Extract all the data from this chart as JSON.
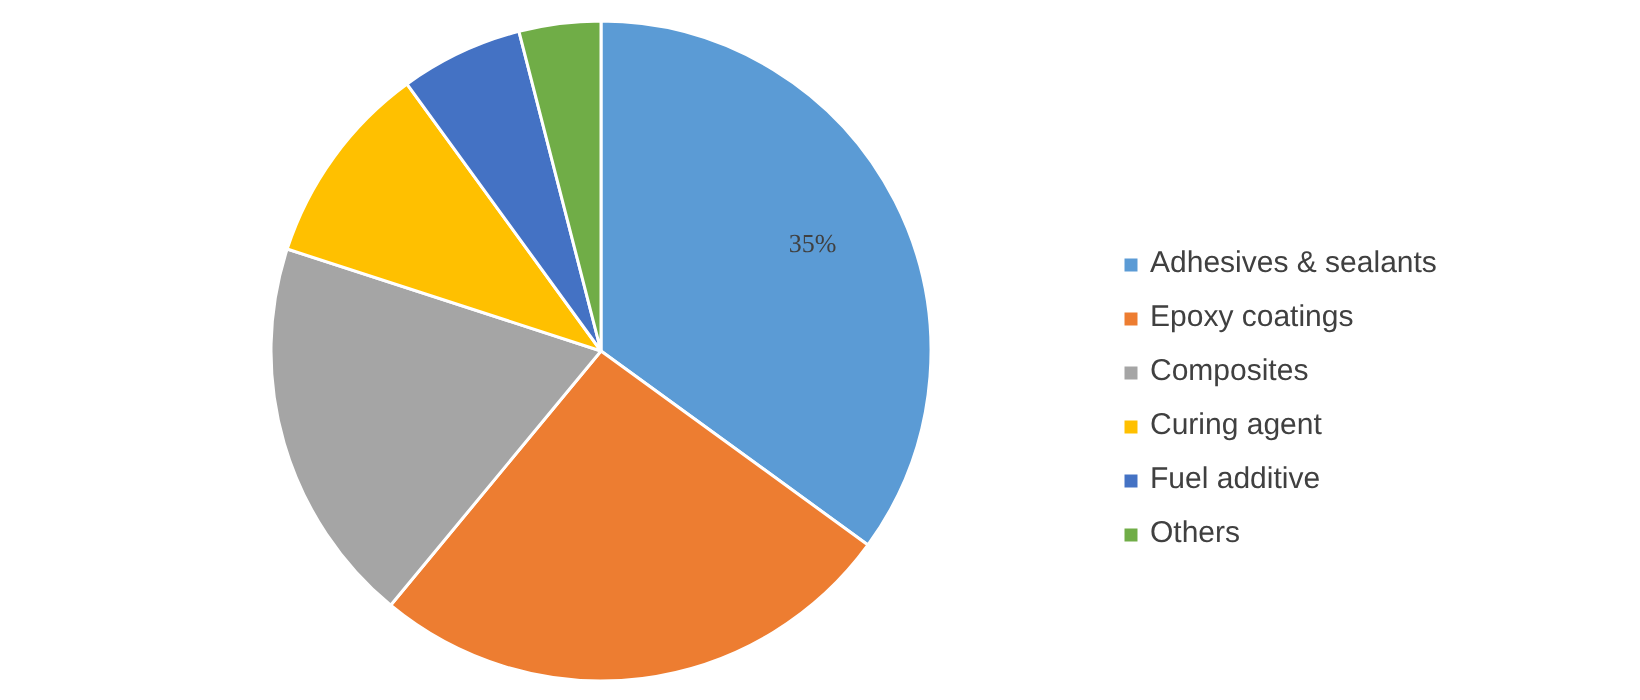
{
  "chart_data": {
    "type": "pie",
    "categories": [
      "Adhesives & sealants",
      "Epoxy coatings",
      "Composites",
      "Curing agent",
      "Fuel additive",
      "Others"
    ],
    "values": [
      35,
      26,
      19,
      10,
      6,
      4
    ],
    "colors": [
      "#5b9bd5",
      "#ed7d31",
      "#a5a5a5",
      "#ffc000",
      "#4472c4",
      "#70ad47"
    ],
    "value_labels": [
      "35%",
      null,
      null,
      null,
      null,
      null
    ],
    "legend": "right"
  }
}
